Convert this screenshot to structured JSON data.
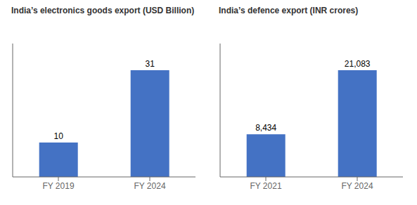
{
  "chart_data": [
    {
      "type": "bar",
      "title": "India’s electronics goods export (USD Billion)",
      "categories": [
        "FY 2019",
        "FY 2024"
      ],
      "values": [
        10,
        31
      ],
      "color": "#4472C4",
      "ylim": [
        0,
        38.75
      ],
      "grid": false,
      "data_labels": true,
      "tick_labels": "x"
    },
    {
      "type": "bar",
      "title": "India’s defence export (INR crores)",
      "categories": [
        "FY 2021",
        "FY 2024"
      ],
      "values": [
        8434,
        21083
      ],
      "value_labels": [
        "8,434",
        "21,083"
      ],
      "color": "#4472C4",
      "ylim": [
        0,
        26353.75
      ],
      "grid": false,
      "data_labels": true,
      "tick_labels": "x"
    }
  ]
}
